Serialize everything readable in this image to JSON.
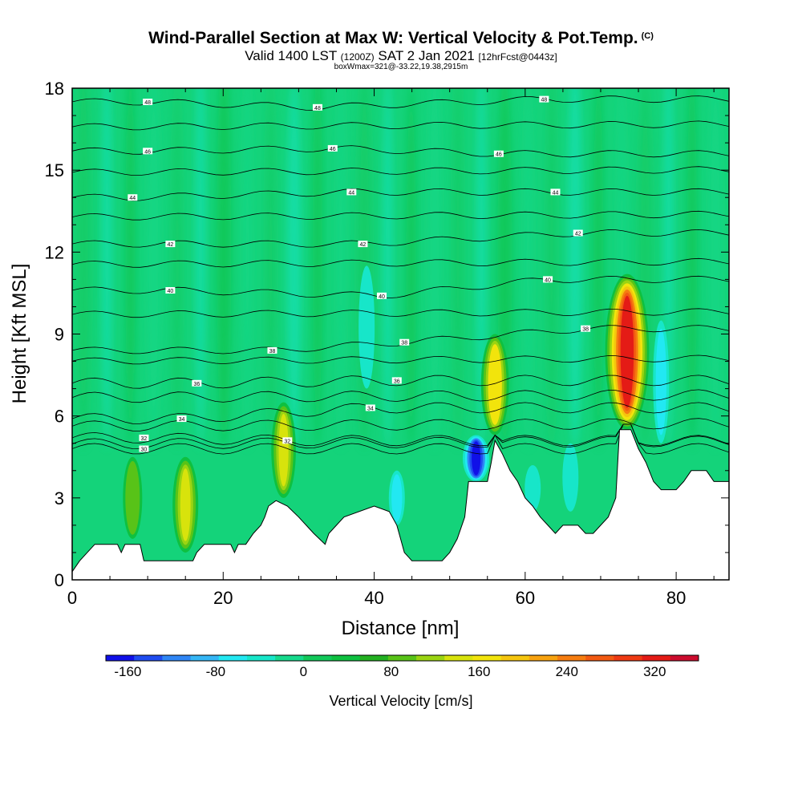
{
  "header": {
    "title": "Wind-Parallel Section at Max W: Vertical Velocity & Pot.Temp.",
    "copyright": "(C)",
    "valid_prefix": "Valid 1400 LST",
    "valid_utc": "(1200Z)",
    "valid_date": "SAT 2 Jan 2021",
    "forecast": "[12hrFcst@0443z]",
    "boxmax": "boxWmax=321@-33.22,19.38,2915m"
  },
  "chart_data": {
    "type": "heatmap",
    "title": "Wind-Parallel Section at Max W: Vertical Velocity & Pot.Temp.",
    "xlabel": "Distance [nm]",
    "ylabel": "Height [Kft MSL]",
    "xlim": [
      0,
      87
    ],
    "ylim": [
      0,
      18
    ],
    "x_ticks": [
      "0",
      "20",
      "40",
      "60",
      "80"
    ],
    "y_ticks": [
      "0",
      "3",
      "6",
      "9",
      "12",
      "15",
      "18"
    ],
    "colorbar": {
      "label": "Vertical Velocity [cm/s]",
      "ticks": [
        "-160",
        "-80",
        "0",
        "80",
        "160",
        "240",
        "320"
      ],
      "range": [
        -180,
        360
      ],
      "colors": [
        "#1010e8",
        "#1f4cf0",
        "#2f86f5",
        "#35b6f5",
        "#22e8f2",
        "#17e6c9",
        "#16d98c",
        "#12c85a",
        "#0ec040",
        "#22b021",
        "#58c318",
        "#9ad412",
        "#d8e30c",
        "#f2e40c",
        "#f5c50e",
        "#f7a20f",
        "#f67d10",
        "#f25a12",
        "#ee3a13",
        "#e41b16",
        "#cc0c2e"
      ]
    },
    "terrain": [
      [
        0,
        0.3
      ],
      [
        1,
        0.7
      ],
      [
        3,
        1.3
      ],
      [
        6,
        1.3
      ],
      [
        6.5,
        1.0
      ],
      [
        7,
        1.3
      ],
      [
        9,
        1.3
      ],
      [
        9.5,
        0.7
      ],
      [
        16,
        0.7
      ],
      [
        16.5,
        1.0
      ],
      [
        17.5,
        1.3
      ],
      [
        21,
        1.3
      ],
      [
        21.5,
        1.0
      ],
      [
        22,
        1.3
      ],
      [
        23,
        1.3
      ],
      [
        24,
        1.7
      ],
      [
        25,
        2.0
      ],
      [
        25.5,
        2.3
      ],
      [
        26,
        2.7
      ],
      [
        27,
        2.9
      ],
      [
        28.5,
        2.7
      ],
      [
        30,
        2.3
      ],
      [
        31,
        2.0
      ],
      [
        32,
        1.7
      ],
      [
        33.5,
        1.3
      ],
      [
        34,
        1.7
      ],
      [
        35,
        2.0
      ],
      [
        36,
        2.3
      ],
      [
        40,
        2.7
      ],
      [
        42,
        2.5
      ],
      [
        43,
        2.0
      ],
      [
        44,
        1.0
      ],
      [
        45,
        0.7
      ],
      [
        49,
        0.7
      ],
      [
        50,
        1.0
      ],
      [
        51,
        1.5
      ],
      [
        52,
        2.3
      ],
      [
        52.5,
        3.6
      ],
      [
        55,
        3.6
      ],
      [
        55.5,
        4.3
      ],
      [
        56,
        5.1
      ],
      [
        57,
        4.6
      ],
      [
        58,
        4.0
      ],
      [
        59,
        3.6
      ],
      [
        60,
        3.0
      ],
      [
        61,
        2.7
      ],
      [
        62,
        2.3
      ],
      [
        63,
        2.0
      ],
      [
        64,
        1.7
      ],
      [
        65,
        2.0
      ],
      [
        67,
        2.0
      ],
      [
        68,
        1.7
      ],
      [
        69,
        1.7
      ],
      [
        70,
        2.0
      ],
      [
        71,
        2.3
      ],
      [
        72,
        3.0
      ],
      [
        72.5,
        5.5
      ],
      [
        74,
        5.5
      ],
      [
        75,
        4.8
      ],
      [
        76,
        4.3
      ],
      [
        77,
        3.6
      ],
      [
        78,
        3.3
      ],
      [
        80,
        3.3
      ],
      [
        81,
        3.6
      ],
      [
        82,
        4.0
      ],
      [
        84,
        4.0
      ],
      [
        85,
        3.6
      ],
      [
        87,
        3.6
      ]
    ],
    "vertical_velocity_features": [
      {
        "x": 73.5,
        "z_bottom": 5.5,
        "z_top": 11.2,
        "value": 321
      },
      {
        "x": 56,
        "z_bottom": 5.3,
        "z_top": 9.0,
        "value": 170
      },
      {
        "x": 15,
        "z_bottom": 1.0,
        "z_top": 4.5,
        "value": 150
      },
      {
        "x": 28,
        "z_bottom": 3.0,
        "z_top": 6.5,
        "value": 140
      },
      {
        "x": 8,
        "z_bottom": 1.5,
        "z_top": 4.5,
        "value": 90
      },
      {
        "x": 53.5,
        "z_bottom": 3.6,
        "z_top": 5.3,
        "value": -160
      },
      {
        "x": 43,
        "z_bottom": 2.0,
        "z_top": 4.0,
        "value": -60
      },
      {
        "x": 39,
        "z_bottom": 7.0,
        "z_top": 11.5,
        "value": -45
      },
      {
        "x": 78,
        "z_bottom": 5.0,
        "z_top": 9.5,
        "value": -60
      },
      {
        "x": 66,
        "z_bottom": 2.5,
        "z_top": 5.0,
        "value": -40
      },
      {
        "x": 61,
        "z_bottom": 2.5,
        "z_top": 4.2,
        "value": -35
      }
    ],
    "theta_labels": [
      {
        "x": 10,
        "z": 17.5,
        "text": "48"
      },
      {
        "x": 32.5,
        "z": 17.3,
        "text": "48"
      },
      {
        "x": 62.5,
        "z": 17.6,
        "text": "48"
      },
      {
        "x": 10,
        "z": 15.7,
        "text": "46"
      },
      {
        "x": 34.5,
        "z": 15.8,
        "text": "46"
      },
      {
        "x": 56.5,
        "z": 15.6,
        "text": "46"
      },
      {
        "x": 8,
        "z": 14.0,
        "text": "44"
      },
      {
        "x": 37,
        "z": 14.2,
        "text": "44"
      },
      {
        "x": 64,
        "z": 14.2,
        "text": "44"
      },
      {
        "x": 13,
        "z": 12.3,
        "text": "42"
      },
      {
        "x": 38.5,
        "z": 12.3,
        "text": "42"
      },
      {
        "x": 67,
        "z": 12.7,
        "text": "42"
      },
      {
        "x": 13,
        "z": 10.6,
        "text": "40"
      },
      {
        "x": 41,
        "z": 10.4,
        "text": "40"
      },
      {
        "x": 63,
        "z": 11.0,
        "text": "40"
      },
      {
        "x": 26.5,
        "z": 8.4,
        "text": "38"
      },
      {
        "x": 44,
        "z": 8.7,
        "text": "38"
      },
      {
        "x": 68,
        "z": 9.2,
        "text": "38"
      },
      {
        "x": 16.5,
        "z": 7.2,
        "text": "36"
      },
      {
        "x": 43,
        "z": 7.3,
        "text": "36"
      },
      {
        "x": 14.5,
        "z": 5.9,
        "text": "34"
      },
      {
        "x": 39.5,
        "z": 6.3,
        "text": "34"
      },
      {
        "x": 9.5,
        "z": 5.2,
        "text": "32"
      },
      {
        "x": 28.5,
        "z": 5.1,
        "text": "32"
      },
      {
        "x": 9.5,
        "z": 4.8,
        "text": "30"
      }
    ]
  }
}
